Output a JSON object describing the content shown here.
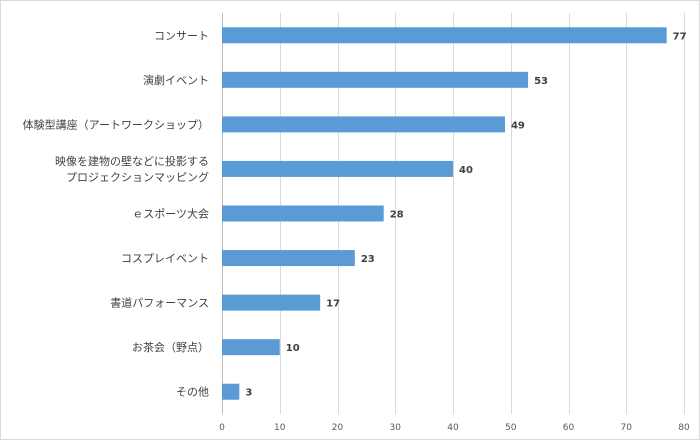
{
  "chart_data": {
    "type": "bar",
    "orientation": "horizontal",
    "categories": [
      [
        "コンサート"
      ],
      [
        "演劇イベント"
      ],
      [
        "体験型講座（アートワークショップ）"
      ],
      [
        "映像を建物の壁などに投影する",
        "プロジェクションマッピング"
      ],
      [
        "ｅスポーツ大会"
      ],
      [
        "コスプレイベント"
      ],
      [
        "書道パフォーマンス"
      ],
      [
        "お茶会（野点）"
      ],
      [
        "その他"
      ]
    ],
    "values": [
      77,
      53,
      49,
      40,
      28,
      23,
      17,
      10,
      3
    ],
    "xlim": [
      0,
      80
    ],
    "xticks": [
      "0",
      "10",
      "20",
      "30",
      "40",
      "50",
      "60",
      "70",
      "80"
    ],
    "grid": true,
    "bar_color": "#5b9bd5",
    "data_labels": true
  }
}
